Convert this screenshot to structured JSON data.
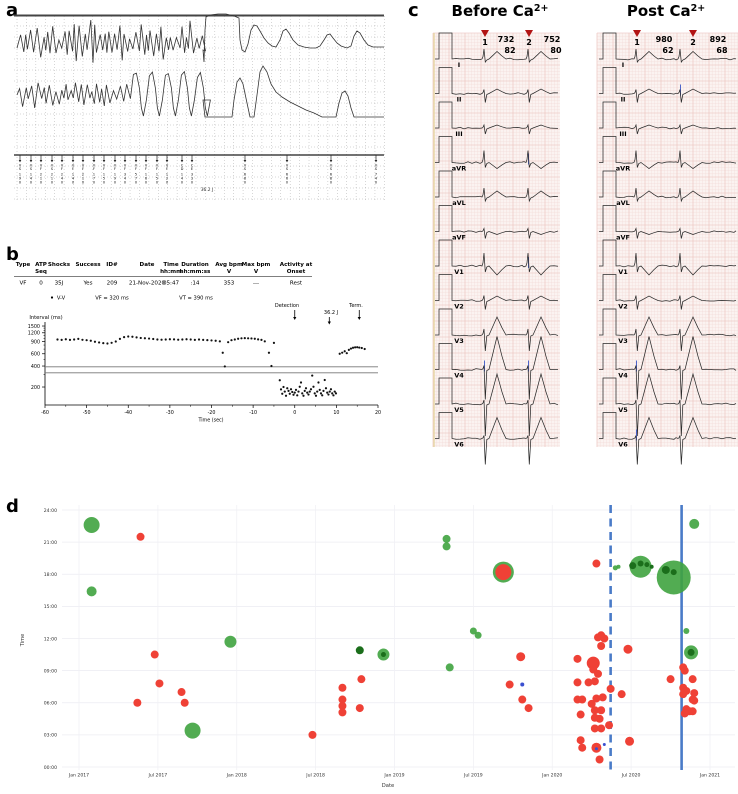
{
  "panels": {
    "a": {
      "label": "a",
      "shock_energy": "36.2 J",
      "markers": {
        "pre": [
          {
            "m": "VS",
            "i": "190"
          },
          {
            "m": "VS",
            "i": "140"
          },
          {
            "m": "VF",
            "i": "210"
          },
          {
            "m": "VS",
            "i": "210"
          },
          {
            "m": "VF",
            "i": "240"
          },
          {
            "m": "VF",
            "i": "140"
          },
          {
            "m": "VF",
            "i": "210"
          },
          {
            "m": "VF",
            "i": "170"
          },
          {
            "m": "VF",
            "i": "150"
          },
          {
            "m": "VF",
            "i": "190"
          },
          {
            "m": "VF",
            "i": "340"
          },
          {
            "m": "VF",
            "i": "570"
          },
          {
            "m": "VF",
            "i": "160"
          },
          {
            "m": "VF",
            "i": "150"
          },
          {
            "m": "VF",
            "i": "120"
          },
          {
            "m": "CD",
            "i": "140"
          },
          {
            "m": "CE",
            "i": "330"
          }
        ],
        "post": [
          {
            "m": "VS",
            "i": "680"
          },
          {
            "m": "VS",
            "i": "660"
          },
          {
            "m": "VS",
            "i": "680"
          },
          {
            "m": "VS",
            "i": "740"
          }
        ]
      }
    },
    "b": {
      "label": "b",
      "table": {
        "headers": [
          [
            "Type",
            ""
          ],
          [
            "ATP",
            "Seq"
          ],
          [
            "Shocks",
            ""
          ],
          [
            "Success",
            ""
          ],
          [
            "ID#",
            ""
          ],
          [
            "Date",
            ""
          ],
          [
            "Time",
            "hh:mm"
          ],
          [
            "Duration",
            "hh:mm:ss"
          ],
          [
            "Avg bpm",
            "V"
          ],
          [
            "Max bpm",
            "V"
          ],
          [
            "Activity at",
            "Onset"
          ]
        ],
        "row": [
          "VF",
          "0",
          "35J",
          "Yes",
          "209",
          "21-Nov-2020",
          "05:47",
          ":14",
          "353",
          "---",
          "Rest"
        ]
      },
      "legend": {
        "marker": "V-V",
        "vf": "VF = 320 ms",
        "vt": "VT = 390 ms"
      },
      "annotations": {
        "detection": "Detection",
        "shock": "36.2 J",
        "term": "Term."
      }
    },
    "c": {
      "label": "c",
      "left": {
        "title_prefix": "Before Ca",
        "title_sup": "2+",
        "beats": [
          {
            "n": "1",
            "interval": "732",
            "rate": "82"
          },
          {
            "n": "2",
            "interval": "752",
            "rate": "80"
          }
        ]
      },
      "right": {
        "title_prefix": "Post Ca",
        "title_sup": "2+",
        "beats": [
          {
            "n": "1",
            "interval": "980",
            "rate": "62"
          },
          {
            "n": "2",
            "interval": "892",
            "rate": "68"
          }
        ]
      },
      "leads": [
        "I",
        "II",
        "III",
        "aVR",
        "aVL",
        "aVF",
        "V1",
        "V2",
        "V3",
        "V4",
        "V5",
        "V6"
      ]
    },
    "d": {
      "label": "d"
    }
  },
  "chart_data": [
    {
      "type": "scatter",
      "name": "interval-plot",
      "xlabel": "Time (sec)",
      "ylabel": "Interval (ms)",
      "xlim": [
        -60,
        20
      ],
      "x_ticks": [
        -60,
        -50,
        -40,
        -30,
        -20,
        -10,
        0,
        10,
        20
      ],
      "y_ticks": [
        1500,
        1200,
        900,
        600,
        400,
        200
      ],
      "y_minor_ticks": [
        300,
        500,
        700,
        800,
        1000,
        1100,
        1300,
        1400
      ],
      "y_scale": "log",
      "thresholds_ms": {
        "vt": 390,
        "vf": 320
      },
      "events": {
        "detection_t": 0,
        "shock_t": 8.3,
        "term_t": 15.5
      },
      "points": [
        [
          -57,
          960
        ],
        [
          -56,
          950
        ],
        [
          -55,
          970
        ],
        [
          -54,
          950
        ],
        [
          -53,
          962
        ],
        [
          -52,
          980
        ],
        [
          -51,
          952
        ],
        [
          -50,
          940
        ],
        [
          -49,
          922
        ],
        [
          -48,
          892
        ],
        [
          -47,
          872
        ],
        [
          -46,
          852
        ],
        [
          -45,
          842
        ],
        [
          -44,
          862
        ],
        [
          -43,
          900
        ],
        [
          -42,
          980
        ],
        [
          -41,
          1040
        ],
        [
          -40,
          1062
        ],
        [
          -39,
          1052
        ],
        [
          -38,
          1032
        ],
        [
          -37,
          1012
        ],
        [
          -36,
          1002
        ],
        [
          -35,
          992
        ],
        [
          -34,
          976
        ],
        [
          -33,
          962
        ],
        [
          -32,
          955
        ],
        [
          -31,
          960
        ],
        [
          -30,
          970
        ],
        [
          -29,
          965
        ],
        [
          -28,
          955
        ],
        [
          -27,
          960
        ],
        [
          -26,
          970
        ],
        [
          -25,
          960
        ],
        [
          -24,
          950
        ],
        [
          -23,
          960
        ],
        [
          -22,
          950
        ],
        [
          -21,
          942
        ],
        [
          -20,
          932
        ],
        [
          -19,
          922
        ],
        [
          -18,
          905
        ],
        [
          -17.3,
          620
        ],
        [
          -16.8,
          395
        ],
        [
          -16,
          880
        ],
        [
          -15.2,
          940
        ],
        [
          -14.4,
          960
        ],
        [
          -13.6,
          985
        ],
        [
          -12.8,
          1000
        ],
        [
          -12,
          1005
        ],
        [
          -11.2,
          1000
        ],
        [
          -10.4,
          995
        ],
        [
          -9.6,
          985
        ],
        [
          -8.8,
          965
        ],
        [
          -8,
          950
        ],
        [
          -7.2,
          905
        ],
        [
          -6.2,
          620
        ],
        [
          -5.6,
          400
        ],
        [
          -5,
          860
        ],
        [
          -3.6,
          250
        ],
        [
          -3.3,
          185
        ],
        [
          -3,
          160
        ],
        [
          -2.7,
          200
        ],
        [
          -2.4,
          172
        ],
        [
          -2.1,
          150
        ],
        [
          -1.8,
          192
        ],
        [
          -1.5,
          176
        ],
        [
          -1.2,
          160
        ],
        [
          -0.9,
          186
        ],
        [
          -0.6,
          170
        ],
        [
          -0.3,
          155
        ],
        [
          0,
          166
        ],
        [
          0.3,
          182
        ],
        [
          0.6,
          152
        ],
        [
          0.9,
          172
        ],
        [
          1.2,
          202
        ],
        [
          1.5,
          232
        ],
        [
          1.8,
          162
        ],
        [
          2.1,
          150
        ],
        [
          2.4,
          176
        ],
        [
          2.7,
          192
        ],
        [
          3,
          166
        ],
        [
          3.3,
          156
        ],
        [
          3.6,
          172
        ],
        [
          3.9,
          186
        ],
        [
          4.2,
          292
        ],
        [
          4.5,
          202
        ],
        [
          4.8,
          162
        ],
        [
          5.1,
          150
        ],
        [
          5.4,
          172
        ],
        [
          5.7,
          232
        ],
        [
          6,
          182
        ],
        [
          6.3,
          162
        ],
        [
          6.6,
          152
        ],
        [
          6.9,
          176
        ],
        [
          7.2,
          252
        ],
        [
          7.5,
          192
        ],
        [
          7.8,
          166
        ],
        [
          8.1,
          156
        ],
        [
          8.4,
          172
        ],
        [
          8.7,
          186
        ],
        [
          9,
          162
        ],
        [
          9.3,
          152
        ],
        [
          9.6,
          172
        ],
        [
          9.9,
          162
        ],
        [
          10.8,
          600
        ],
        [
          11.4,
          622
        ],
        [
          12,
          652
        ],
        [
          12.5,
          612
        ],
        [
          13,
          682
        ],
        [
          13.5,
          712
        ],
        [
          14,
          732
        ],
        [
          14.5,
          742
        ],
        [
          15,
          745
        ],
        [
          15.5,
          736
        ],
        [
          16.1,
          726
        ],
        [
          16.8,
          702
        ]
      ]
    },
    {
      "type": "bubble-scatter",
      "name": "episode-timeline",
      "xlabel": "Date",
      "ylabel": "Time",
      "x_ticks": [
        "Jan 2017",
        "Jul 2017",
        "Jan 2018",
        "Jul 2018",
        "Jan 2019",
        "Jul 2019",
        "Jan 2020",
        "Jul 2020",
        "Jan 2021"
      ],
      "y_ticks": [
        "00:00",
        "03:00",
        "06:00",
        "09:00",
        "12:00",
        "15:00",
        "18:00",
        "21:00",
        "24:00"
      ],
      "vlines": [
        {
          "x": 2020.37,
          "style": "dashed"
        },
        {
          "x": 2020.82,
          "style": "solid"
        }
      ],
      "colors": {
        "green": "#3fa33f",
        "dark_green": "#1b6e1b",
        "red": "#ef4136",
        "blue": "#3a4fd0",
        "line_blue": "#4a7bc8"
      },
      "series": [
        {
          "name": "green",
          "points": [
            [
              2017.08,
              22.6,
              8
            ],
            [
              2017.08,
              16.4,
              5
            ],
            [
              2017.96,
              11.7,
              6
            ],
            [
              2017.72,
              3.4,
              8
            ],
            [
              2018.93,
              10.5,
              6
            ],
            [
              2019.33,
              21.3,
              4
            ],
            [
              2019.33,
              20.6,
              4
            ],
            [
              2019.5,
              12.7,
              3.5
            ],
            [
              2019.53,
              12.3,
              3.5
            ],
            [
              2019.35,
              9.3,
              4
            ],
            [
              2019.69,
              18.2,
              10.5
            ],
            [
              2020.4,
              18.6,
              2.5
            ],
            [
              2020.42,
              18.7,
              2
            ],
            [
              2020.56,
              18.7,
              11
            ],
            [
              2020.77,
              17.7,
              17
            ],
            [
              2020.9,
              22.7,
              5
            ],
            [
              2020.85,
              12.7,
              3
            ],
            [
              2020.88,
              10.7,
              7
            ]
          ]
        },
        {
          "name": "red",
          "points": [
            [
              2017.39,
              21.5,
              4
            ],
            [
              2017.48,
              10.5,
              4
            ],
            [
              2017.51,
              7.8,
              4
            ],
            [
              2017.65,
              7.0,
              4
            ],
            [
              2017.37,
              6.0,
              4
            ],
            [
              2017.67,
              6.0,
              4
            ],
            [
              2018.48,
              3.0,
              4
            ],
            [
              2018.67,
              7.4,
              4
            ],
            [
              2018.79,
              8.2,
              4
            ],
            [
              2018.67,
              6.3,
              4
            ],
            [
              2018.67,
              5.7,
              4
            ],
            [
              2018.67,
              5.1,
              4
            ],
            [
              2018.78,
              5.5,
              4
            ],
            [
              2019.69,
              18.2,
              8
            ],
            [
              2019.8,
              10.3,
              4.5
            ],
            [
              2019.73,
              7.7,
              4
            ],
            [
              2019.81,
              6.3,
              4
            ],
            [
              2019.85,
              5.5,
              4
            ],
            [
              2020.28,
              19.0,
              4
            ],
            [
              2020.31,
              12.3,
              4
            ],
            [
              2020.29,
              12.1,
              4
            ],
            [
              2020.33,
              12.0,
              4
            ],
            [
              2020.31,
              11.3,
              4
            ],
            [
              2020.16,
              10.1,
              4
            ],
            [
              2020.26,
              9.7,
              6.5
            ],
            [
              2020.26,
              9.1,
              4
            ],
            [
              2020.29,
              8.7,
              4
            ],
            [
              2020.16,
              7.9,
              4
            ],
            [
              2020.23,
              7.9,
              4
            ],
            [
              2020.27,
              8.0,
              4
            ],
            [
              2020.37,
              7.3,
              4
            ],
            [
              2020.44,
              6.8,
              4
            ],
            [
              2020.16,
              6.3,
              4
            ],
            [
              2020.19,
              6.3,
              4
            ],
            [
              2020.25,
              5.9,
              4
            ],
            [
              2020.28,
              6.4,
              4
            ],
            [
              2020.32,
              6.5,
              4
            ],
            [
              2020.27,
              5.3,
              4
            ],
            [
              2020.31,
              5.3,
              4
            ],
            [
              2020.18,
              4.9,
              4
            ],
            [
              2020.27,
              4.6,
              4
            ],
            [
              2020.3,
              4.5,
              4
            ],
            [
              2020.27,
              3.6,
              4
            ],
            [
              2020.31,
              3.6,
              4
            ],
            [
              2020.36,
              3.9,
              4
            ],
            [
              2020.18,
              2.5,
              4
            ],
            [
              2020.19,
              1.8,
              4
            ],
            [
              2020.28,
              1.8,
              5
            ],
            [
              2020.3,
              0.7,
              4
            ],
            [
              2020.49,
              2.4,
              4.5
            ],
            [
              2020.48,
              11.0,
              4.5
            ],
            [
              2020.75,
              8.2,
              4
            ],
            [
              2020.83,
              9.3,
              4
            ],
            [
              2020.84,
              9.0,
              4
            ],
            [
              2020.89,
              8.2,
              4
            ],
            [
              2020.83,
              7.4,
              4
            ],
            [
              2020.85,
              7.1,
              4
            ],
            [
              2020.83,
              6.8,
              4
            ],
            [
              2020.9,
              6.9,
              4
            ],
            [
              2020.89,
              6.3,
              4
            ],
            [
              2020.9,
              6.2,
              4
            ],
            [
              2020.85,
              5.4,
              4
            ],
            [
              2020.87,
              5.2,
              4
            ],
            [
              2020.89,
              5.2,
              4
            ],
            [
              2020.84,
              5.0,
              4
            ]
          ]
        },
        {
          "name": "dark_green",
          "points": [
            [
              2018.78,
              10.9,
              4
            ],
            [
              2018.93,
              10.5,
              2.5
            ],
            [
              2020.51,
              18.8,
              3.5
            ],
            [
              2020.56,
              19.0,
              3
            ],
            [
              2020.6,
              18.9,
              2.5
            ],
            [
              2020.63,
              18.7,
              2
            ],
            [
              2020.72,
              18.4,
              4
            ],
            [
              2020.77,
              18.2,
              3
            ],
            [
              2020.88,
              10.7,
              3.5
            ]
          ]
        },
        {
          "name": "blue",
          "points": [
            [
              2019.81,
              7.7,
              2
            ],
            [
              2020.33,
              2.1,
              1.5
            ],
            [
              2020.28,
              1.7,
              1.5
            ]
          ]
        }
      ]
    }
  ]
}
